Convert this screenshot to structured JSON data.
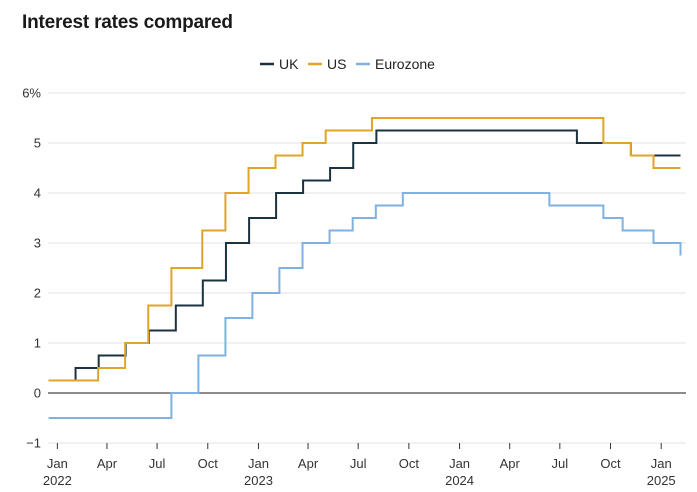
{
  "chart_data": {
    "type": "line",
    "step": true,
    "title": "Interest rates compared",
    "ylim": [
      -1,
      6
    ],
    "y_ticks": [
      {
        "value": 6,
        "label": "6%"
      },
      {
        "value": 5,
        "label": "5"
      },
      {
        "value": 4,
        "label": "4"
      },
      {
        "value": 3,
        "label": "3"
      },
      {
        "value": 2,
        "label": "2"
      },
      {
        "value": 1,
        "label": "1"
      },
      {
        "value": 0,
        "label": "0"
      },
      {
        "value": -1,
        "label": "−1"
      }
    ],
    "xlim": [
      "2021-12-15",
      "2025-02-15"
    ],
    "x_ticks": [
      {
        "date": "2022-01-01",
        "label": "Jan",
        "year": "2022"
      },
      {
        "date": "2022-04-01",
        "label": "Apr"
      },
      {
        "date": "2022-07-01",
        "label": "Jul"
      },
      {
        "date": "2022-10-01",
        "label": "Oct"
      },
      {
        "date": "2023-01-01",
        "label": "Jan",
        "year": "2023"
      },
      {
        "date": "2023-04-01",
        "label": "Apr"
      },
      {
        "date": "2023-07-01",
        "label": "Jul"
      },
      {
        "date": "2023-10-01",
        "label": "Oct"
      },
      {
        "date": "2024-01-01",
        "label": "Jan",
        "year": "2024"
      },
      {
        "date": "2024-04-01",
        "label": "Apr"
      },
      {
        "date": "2024-07-01",
        "label": "Jul"
      },
      {
        "date": "2024-10-01",
        "label": "Oct"
      },
      {
        "date": "2025-01-01",
        "label": "Jan",
        "year": "2025"
      }
    ],
    "legend_position": "top-center",
    "series": [
      {
        "name": "UK",
        "color": "#1b3240",
        "points": [
          [
            "2021-12-16",
            0.25
          ],
          [
            "2022-02-03",
            0.5
          ],
          [
            "2022-03-17",
            0.75
          ],
          [
            "2022-05-05",
            1.0
          ],
          [
            "2022-06-16",
            1.25
          ],
          [
            "2022-08-04",
            1.75
          ],
          [
            "2022-09-22",
            2.25
          ],
          [
            "2022-11-03",
            3.0
          ],
          [
            "2022-12-15",
            3.5
          ],
          [
            "2023-02-02",
            4.0
          ],
          [
            "2023-03-23",
            4.25
          ],
          [
            "2023-05-11",
            4.5
          ],
          [
            "2023-06-22",
            5.0
          ],
          [
            "2023-08-03",
            5.25
          ],
          [
            "2024-08-01",
            5.0
          ],
          [
            "2024-11-07",
            4.75
          ],
          [
            "2025-02-05",
            4.75
          ]
        ]
      },
      {
        "name": "US",
        "color": "#e0a526",
        "points": [
          [
            "2021-12-16",
            0.25
          ],
          [
            "2022-03-16",
            0.5
          ],
          [
            "2022-05-04",
            1.0
          ],
          [
            "2022-06-15",
            1.75
          ],
          [
            "2022-07-27",
            2.5
          ],
          [
            "2022-09-21",
            3.25
          ],
          [
            "2022-11-02",
            4.0
          ],
          [
            "2022-12-14",
            4.5
          ],
          [
            "2023-02-01",
            4.75
          ],
          [
            "2023-03-22",
            5.0
          ],
          [
            "2023-05-03",
            5.25
          ],
          [
            "2023-07-26",
            5.5
          ],
          [
            "2024-09-18",
            5.0
          ],
          [
            "2024-11-07",
            4.75
          ],
          [
            "2024-12-18",
            4.5
          ],
          [
            "2025-02-05",
            4.5
          ]
        ]
      },
      {
        "name": "Eurozone",
        "color": "#7fb2e0",
        "points": [
          [
            "2021-12-16",
            -0.5
          ],
          [
            "2022-07-27",
            0.0
          ],
          [
            "2022-09-14",
            0.75
          ],
          [
            "2022-11-02",
            1.5
          ],
          [
            "2022-12-21",
            2.0
          ],
          [
            "2023-02-08",
            2.5
          ],
          [
            "2023-03-22",
            3.0
          ],
          [
            "2023-05-10",
            3.25
          ],
          [
            "2023-06-21",
            3.5
          ],
          [
            "2023-08-02",
            3.75
          ],
          [
            "2023-09-20",
            4.0
          ],
          [
            "2024-06-12",
            3.75
          ],
          [
            "2024-09-18",
            3.5
          ],
          [
            "2024-10-23",
            3.25
          ],
          [
            "2024-12-18",
            3.0
          ],
          [
            "2025-02-05",
            2.75
          ]
        ]
      }
    ]
  }
}
